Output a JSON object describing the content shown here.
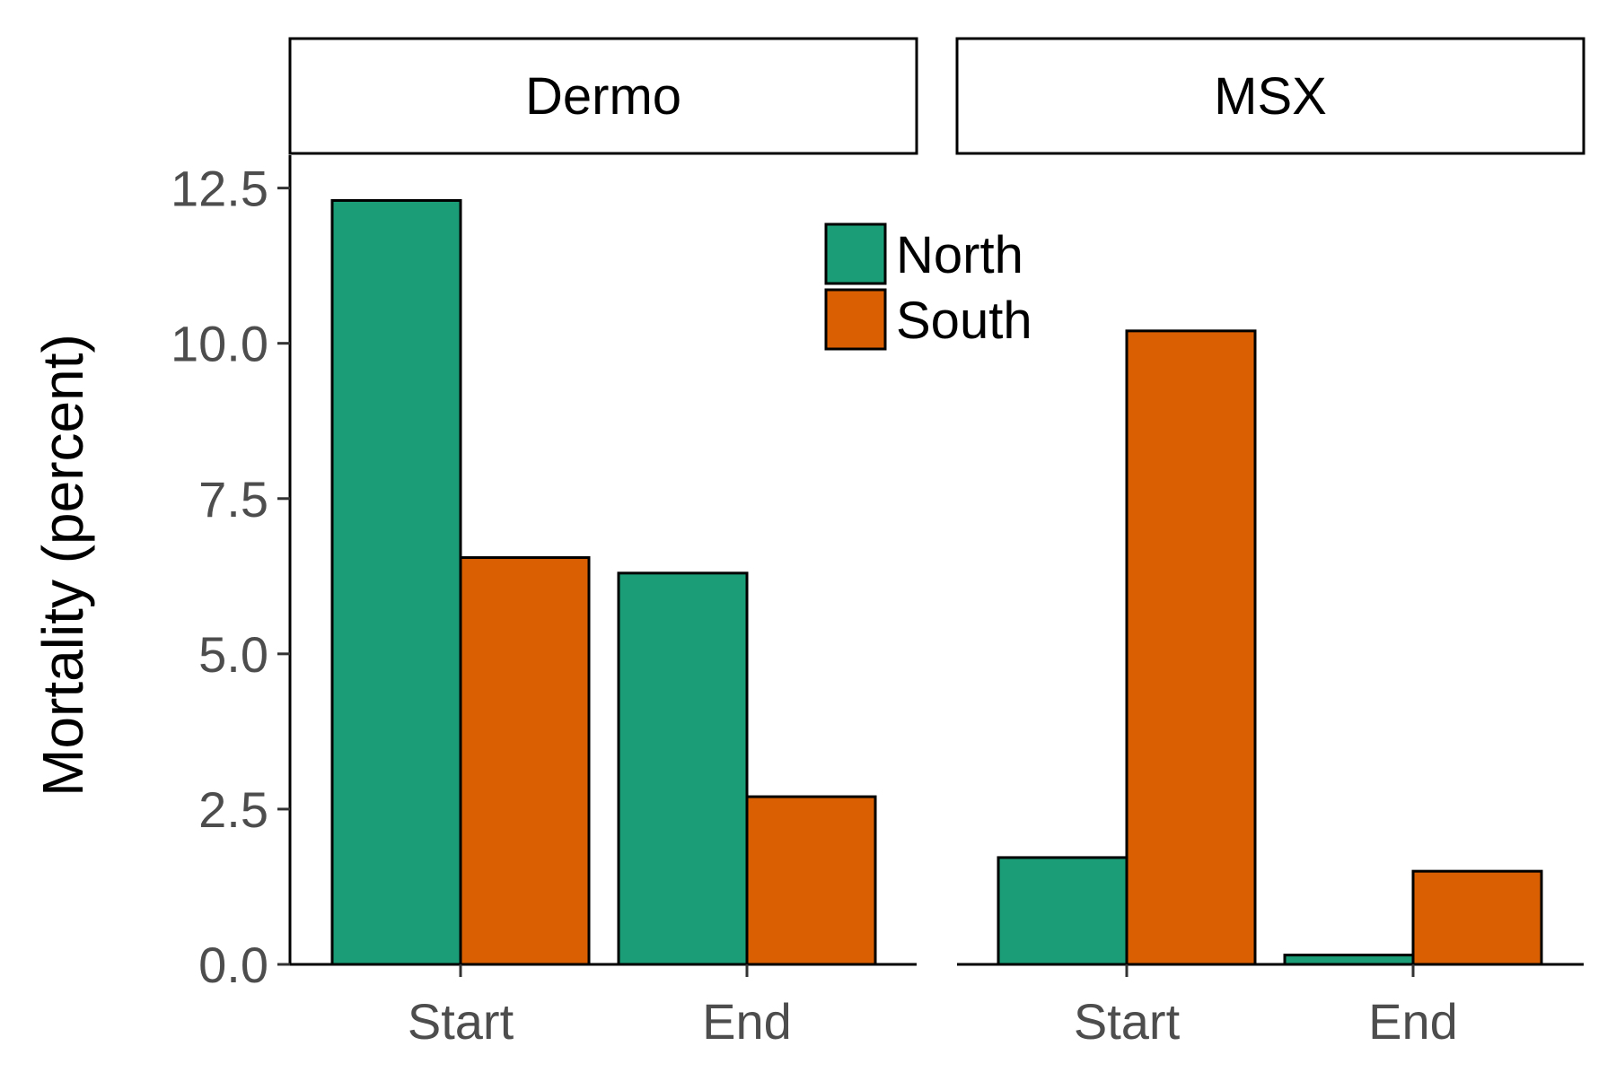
{
  "chart_data": {
    "type": "bar",
    "ylabel": "Mortality (percent)",
    "ylim": [
      0,
      13
    ],
    "yticks": [
      "0.0",
      "2.5",
      "5.0",
      "7.5",
      "10.0",
      "12.5"
    ],
    "categories": [
      "Start",
      "End"
    ],
    "legend": {
      "placement": "top-right of first panel",
      "entries": [
        "North",
        "South"
      ]
    },
    "colors": {
      "North": "#1b9e77",
      "South": "#d95f02"
    },
    "panels": [
      {
        "name": "Dermo",
        "series": [
          {
            "name": "North",
            "values": [
              12.3,
              6.3
            ]
          },
          {
            "name": "South",
            "values": [
              6.55,
              2.7
            ]
          }
        ]
      },
      {
        "name": "MSX",
        "series": [
          {
            "name": "North",
            "values": [
              1.72,
              0.15
            ]
          },
          {
            "name": "South",
            "values": [
              10.2,
              1.5
            ]
          }
        ]
      }
    ]
  }
}
